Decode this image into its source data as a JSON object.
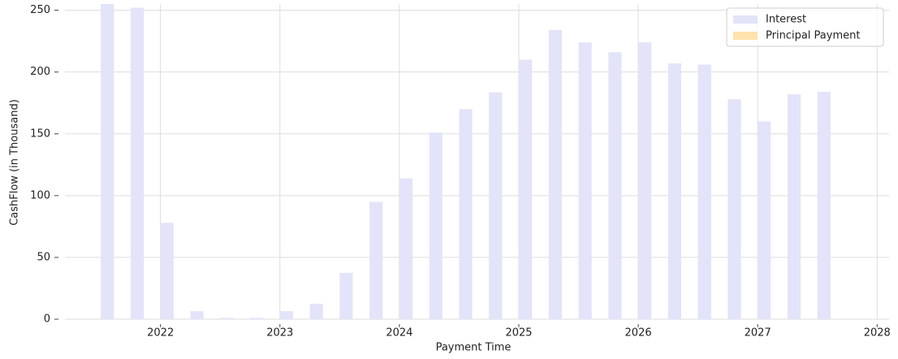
{
  "chart_data": {
    "type": "bar",
    "x": [
      2021.5,
      2021.75,
      2022,
      2022.25,
      2022.5,
      2022.75,
      2023,
      2023.25,
      2023.5,
      2023.75,
      2024,
      2024.25,
      2024.5,
      2024.75,
      2025,
      2025.25,
      2025.5,
      2025.75,
      2026,
      2026.25,
      2026.5,
      2026.75,
      2027,
      2027.25,
      2027.5
    ],
    "series": [
      {
        "name": "Interest",
        "color": "#e3e3f9",
        "values": [
          255,
          252,
          78,
          6.5,
          1,
          1,
          6.5,
          12.5,
          37.5,
          95,
          114,
          151,
          170,
          183.5,
          210,
          234,
          224,
          216,
          224,
          207,
          206,
          178,
          160,
          182,
          184
        ]
      },
      {
        "name": "Principal Payment",
        "color": "#ffe2ad",
        "values": [
          0,
          0,
          0,
          0,
          0,
          0,
          0,
          0,
          0,
          0,
          0,
          0,
          0,
          0,
          0,
          0,
          0,
          0,
          0,
          0,
          0,
          0,
          0,
          0,
          0
        ]
      }
    ],
    "xlabel": "Payment Time",
    "ylabel": "CashFlow (in Thousand)",
    "xlim": [
      2021.2,
      2028.1
    ],
    "xticks": [
      2022,
      2023,
      2024,
      2025,
      2026,
      2027,
      2028
    ],
    "ylim": [
      0,
      255
    ],
    "yticks": [
      0,
      50,
      100,
      150,
      200,
      250
    ],
    "grid": true,
    "legend": "upper right"
  }
}
